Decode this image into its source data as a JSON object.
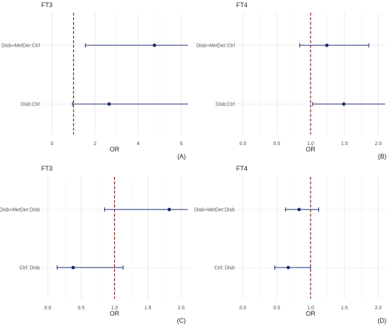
{
  "chart_data": [
    {
      "type": "forest",
      "title": "FT3",
      "xlabel": "OR",
      "tag": "(A)",
      "categories": [
        "Disb+MetDer:Ctrl",
        "Disb:Ctrl"
      ],
      "estimates": [
        4.75,
        2.65
      ],
      "ci_low": [
        1.55,
        0.95
      ],
      "ci_high": [
        6.3,
        6.3
      ],
      "xlim": [
        -0.5,
        6.3
      ],
      "xticks": [
        "0",
        "2",
        "4",
        "6"
      ],
      "xtick_values": [
        0,
        2,
        4,
        6
      ],
      "reference_line": 1,
      "grid": true,
      "colors": {
        "point": "#1a2a6c",
        "reference": "#8b1a1a",
        "grid": "#e6e6e6"
      }
    },
    {
      "type": "forest",
      "title": "FT4",
      "xlabel": "OR",
      "tag": "(B)",
      "categories": [
        "Disb+MetDer:Ctrl",
        "Disb:Ctrl"
      ],
      "estimates": [
        1.24,
        1.49
      ],
      "ci_low": [
        0.84,
        1.03
      ],
      "ci_high": [
        1.86,
        2.1
      ],
      "xlim": [
        -0.1,
        2.1
      ],
      "xticks": [
        "0.0",
        "0.5",
        "1.0",
        "1.5",
        "2.0"
      ],
      "xtick_values": [
        0,
        0.5,
        1,
        1.5,
        2
      ],
      "reference_line": 1,
      "grid": true,
      "colors": {
        "point": "#1a2a6c",
        "reference": "#8b1a1a",
        "grid": "#e6e6e6"
      }
    },
    {
      "type": "forest",
      "title": "FT3",
      "xlabel": "OR",
      "tag": "(C)",
      "categories": [
        "Disb+MetDer:Disb",
        "Ctrl: Disb"
      ],
      "estimates": [
        1.82,
        0.38
      ],
      "ci_low": [
        0.85,
        0.14
      ],
      "ci_high": [
        2.1,
        1.13
      ],
      "xlim": [
        -0.1,
        2.1
      ],
      "xticks": [
        "0.0",
        "0.5",
        "1.0",
        "1.5",
        "2.0"
      ],
      "xtick_values": [
        0,
        0.5,
        1,
        1.5,
        2
      ],
      "reference_line": 1,
      "grid": true,
      "colors": {
        "point": "#1a2a6c",
        "reference": "#8b1a1a",
        "grid": "#e6e6e6"
      }
    },
    {
      "type": "forest",
      "title": "FT4",
      "xlabel": "OR",
      "tag": "(D)",
      "categories": [
        "Disb+MetDer:Disb",
        "Ctrl: Disb"
      ],
      "estimates": [
        0.83,
        0.67
      ],
      "ci_low": [
        0.63,
        0.47
      ],
      "ci_high": [
        1.12,
        1.0
      ],
      "xlim": [
        -0.1,
        2.1
      ],
      "xticks": [
        "0.0",
        "0.5",
        "1.0",
        "1.5",
        "2.0"
      ],
      "xtick_values": [
        0,
        0.5,
        1,
        1.5,
        2
      ],
      "reference_line": 1,
      "grid": true,
      "colors": {
        "point": "#1a2a6c",
        "reference": "#8b1a1a",
        "grid": "#e6e6e6"
      }
    }
  ]
}
